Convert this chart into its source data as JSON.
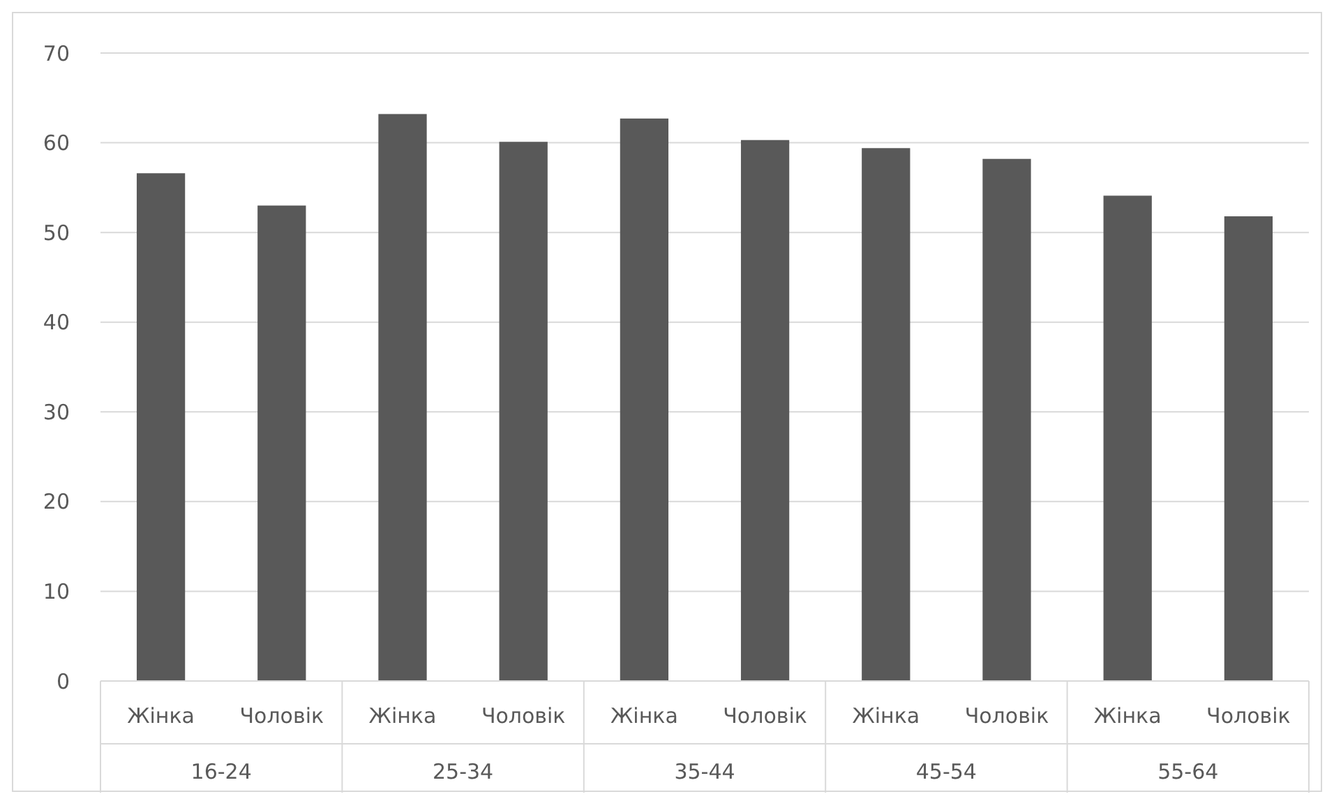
{
  "chart_data": {
    "type": "bar",
    "categories": [
      "Жінка",
      "Чоловік",
      "Жінка",
      "Чоловік",
      "Жінка",
      "Чоловік",
      "Жінка",
      "Чоловік",
      "Жінка",
      "Чоловік"
    ],
    "values": [
      56.6,
      53.0,
      63.2,
      60.1,
      62.7,
      60.3,
      59.4,
      58.2,
      54.1,
      51.8
    ],
    "color": "#595959",
    "annotations": [
      "16-24",
      "25-34",
      "35-44",
      "45-54",
      "55-64"
    ],
    "ylim": [
      0,
      70
    ],
    "yticks": [
      0,
      10,
      20,
      30,
      40,
      50,
      60,
      70
    ],
    "grid": "y"
  }
}
